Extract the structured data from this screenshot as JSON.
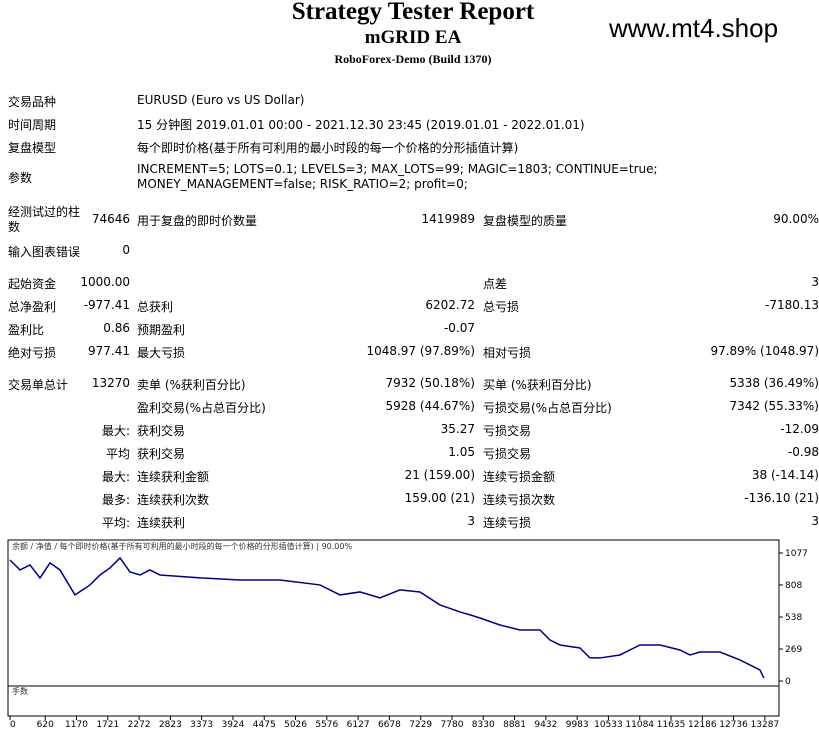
{
  "header": {
    "title": "Strategy Tester Report",
    "subtitle": "mGRID EA",
    "server": "RoboForex-Demo (Build 1370)",
    "watermark": "www.mt4.shop"
  },
  "table": {
    "rows": [
      {
        "label": "交易品种",
        "text": "EURUSD (Euro vs US Dollar)"
      },
      {
        "label": "时间周期",
        "text": "15 分钟图 2019.01.01 00:00 - 2021.12.30 23:45 (2019.01.01 - 2022.01.01)"
      },
      {
        "label": "复盘模型",
        "text": "每个即时价格(基于所有可利用的最小时段的每一个价格的分形插值计算)"
      },
      {
        "label": "参数",
        "text": "INCREMENT=5; LOTS=0.1; LEVELS=3; MAX_LOTS=99; MAGIC=1803; CONTINUE=true; MONEY_MANAGEMENT=false; RISK_RATIO=2; profit=0;"
      },
      {
        "label": "经测试过的柱数",
        "value": "74646",
        "label2": "用于复盘的即时价数量",
        "value2": "1419989",
        "label3": "复盘模型的质量",
        "value3": "90.00%"
      },
      {
        "label": "输入图表错误",
        "value": "0"
      },
      {
        "label": "起始资金",
        "value": "1000.00",
        "label3": "点差",
        "value3": "3"
      },
      {
        "label": "总净盈利",
        "value": "-977.41",
        "label2": "总获利",
        "value2": "6202.72",
        "label3": "总亏损",
        "value3": "-7180.13"
      },
      {
        "label": "盈利比",
        "value": "0.86",
        "label2": "预期盈利",
        "value2": "-0.07"
      },
      {
        "label": "绝对亏损",
        "value": "977.41",
        "label2": "最大亏损",
        "value2": "1048.97 (97.89%)",
        "label3": "相对亏损",
        "value3": "97.89% (1048.97)"
      },
      {
        "label": "交易单总计",
        "value": "13270",
        "label2": "卖单 (%获利百分比)",
        "value2": "7932 (50.18%)",
        "label3": "买单 (%获利百分比)",
        "value3": "5338 (36.49%)"
      },
      {
        "label2": "盈利交易(%占总百分比)",
        "value2": "5928 (44.67%)",
        "label3": "亏损交易(%占总百分比)",
        "value3": "7342 (55.33%)"
      },
      {
        "value": "最大:",
        "label2": "获利交易",
        "value2": "35.27",
        "label3": "亏损交易",
        "value3": "-12.09"
      },
      {
        "value": "平均",
        "label2": "获利交易",
        "value2": "1.05",
        "label3": "亏损交易",
        "value3": "-0.98"
      },
      {
        "value": "最大:",
        "label2": "连续获利金额",
        "value2": "21 (159.00)",
        "label3": "连续亏损金额",
        "value3": "38 (-14.14)"
      },
      {
        "value": "最多:",
        "label2": "连续获利次数",
        "value2": "159.00 (21)",
        "label3": "连续亏损次数",
        "value3": "-136.10 (21)"
      },
      {
        "value": "平均:",
        "label2": "连续获利",
        "value2": "3",
        "label3": "连续亏损",
        "value3": "3"
      }
    ]
  },
  "chart": {
    "type": "line",
    "legend": "余额 / 净值 / 每个即时价格(基于所有可利用的最小时段的每一个价格的分形插值计算) | 90.00%",
    "lots_label": "手数",
    "color": "#00008b",
    "x": [
      0,
      176,
      352,
      528,
      704,
      880,
      1144,
      1408,
      1584,
      1760,
      1936,
      2112,
      2288,
      2464,
      2640,
      3344,
      4048,
      4752,
      5456,
      5808,
      6160,
      6512,
      6864,
      7216,
      7568,
      7920,
      8096,
      8272,
      8624,
      8976,
      9328,
      9504,
      9680,
      10032,
      10208,
      10384,
      10736,
      11088,
      11440,
      11792,
      11968,
      12144,
      12496,
      12848,
      13200,
      13270
    ],
    "values": [
      1018,
      934,
      976,
      867,
      993,
      934,
      724,
      808,
      892,
      951,
      1035,
      917,
      892,
      934,
      892,
      867,
      850,
      850,
      808,
      724,
      749,
      699,
      766,
      749,
      640,
      581,
      556,
      530,
      471,
      429,
      429,
      345,
      303,
      278,
      194,
      194,
      219,
      303,
      303,
      261,
      219,
      244,
      244,
      177,
      93,
      25
    ],
    "xlim": [
      0,
      13553
    ],
    "ylim": [
      0,
      1186
    ],
    "yticks": [
      1077,
      808,
      538,
      269,
      0
    ],
    "xticks": [
      0,
      620,
      1170,
      1721,
      2272,
      2823,
      3373,
      3924,
      4475,
      5026,
      5576,
      6127,
      6678,
      7229,
      7780,
      8330,
      8881,
      9432,
      9983,
      10533,
      11084,
      11635,
      12186,
      12736,
      13287
    ]
  }
}
